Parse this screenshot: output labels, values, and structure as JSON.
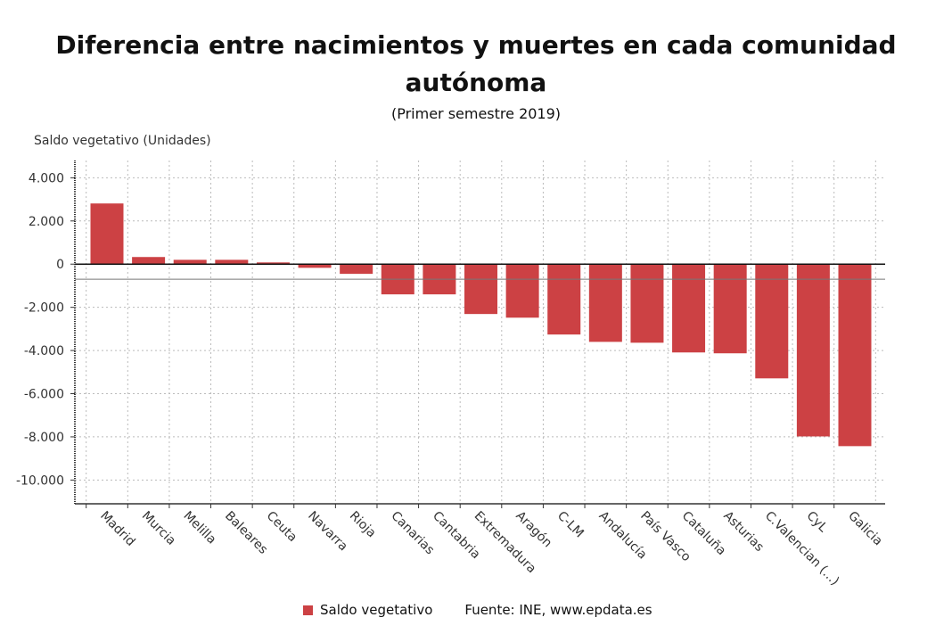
{
  "chart_data": {
    "type": "bar",
    "title_lines": [
      "Diferencia entre nacimientos y muertes en cada comunidad",
      "autónoma"
    ],
    "subtitle": "(Primer semestre 2019)",
    "ylabel": "Saldo vegetativo (Unidades)",
    "xlabel": "",
    "categories": [
      "Madrid",
      "Murcia",
      "Melilla",
      "Baleares",
      "Ceuta",
      "Navarra",
      "Rioja",
      "Canarias",
      "Cantabria",
      "Extremadura",
      "Aragón",
      "C-LM",
      "Andalucía",
      "País Vasco",
      "Cataluña",
      "Asturias",
      "C.Valencian (...)",
      "CyL",
      "Galicia"
    ],
    "series": [
      {
        "name": "Saldo vegetativo",
        "color": "#cc4144",
        "values": [
          2810,
          330,
          200,
          200,
          80,
          -170,
          -450,
          -1400,
          -1400,
          -2310,
          -2480,
          -3260,
          -3600,
          -3640,
          -4090,
          -4130,
          -5290,
          -7980,
          -8430
        ]
      }
    ],
    "yticks": [
      4000,
      2000,
      0,
      -2000,
      -4000,
      -6000,
      -8000,
      -10000
    ],
    "ytick_labels": [
      "4.000",
      "2.000",
      "0",
      "-2.000",
      "-4.000",
      "-6.000",
      "-8.000",
      "-10.000"
    ],
    "ylim": [
      -11100,
      4800
    ],
    "reference_line": -700,
    "grid": true,
    "legend_position": "bottom"
  },
  "footer": {
    "legend_label": "Saldo vegetativo",
    "source": "Fuente: INE, www.epdata.es"
  }
}
